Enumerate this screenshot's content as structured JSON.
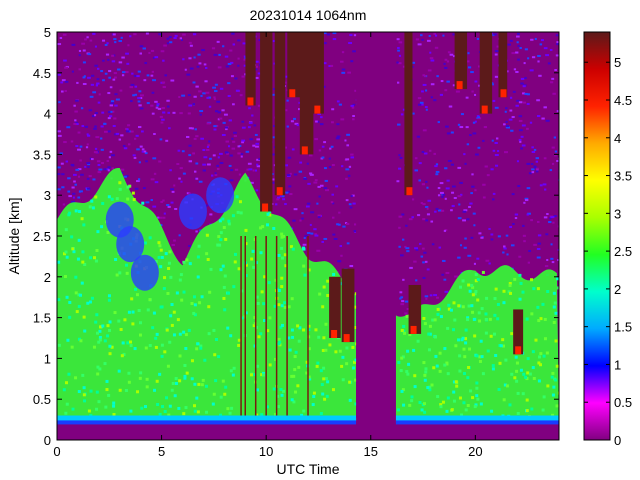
{
  "chart_data": {
    "type": "heatmap",
    "title": "20231014 1064nm",
    "xlabel": "UTC Time",
    "ylabel": "Altitude [km]",
    "xlim": [
      0,
      24
    ],
    "ylim": [
      0,
      5
    ],
    "x_ticks": [
      "0",
      "5",
      "10",
      "15",
      "20"
    ],
    "x_tick_values": [
      0,
      5,
      10,
      15,
      20
    ],
    "y_ticks": [
      "0",
      "0.5",
      "1",
      "1.5",
      "2",
      "2.5",
      "3",
      "3.5",
      "4",
      "4.5",
      "5"
    ],
    "y_tick_values": [
      0,
      0.5,
      1,
      1.5,
      2,
      2.5,
      3,
      3.5,
      4,
      4.5,
      5
    ],
    "colorbar": {
      "range": [
        0,
        5.4
      ],
      "ticks": [
        "0",
        "0.5",
        "1",
        "1.5",
        "2",
        "2.5",
        "3",
        "3.5",
        "4",
        "4.5",
        "5"
      ],
      "tick_values": [
        0,
        0.5,
        1,
        1.5,
        2,
        2.5,
        3,
        3.5,
        4,
        4.5,
        5
      ],
      "colormap": [
        "#800080",
        "#ff00ff",
        "#0000ff",
        "#00aaff",
        "#00ffcc",
        "#22ff22",
        "#aaff00",
        "#ffff00",
        "#ffaa00",
        "#ff2200",
        "#cc0000",
        "#5c1a1a"
      ]
    },
    "data_gap": [
      14.3,
      16.2
    ],
    "boundary_layer_top_km": [
      {
        "t": 0,
        "z": 2.7
      },
      {
        "t": 3,
        "z": 3.3
      },
      {
        "t": 6,
        "z": 2.2
      },
      {
        "t": 9,
        "z": 3.2
      },
      {
        "t": 12,
        "z": 2.3
      },
      {
        "t": 14,
        "z": 1.9
      },
      {
        "t": 17,
        "z": 1.5
      },
      {
        "t": 20,
        "z": 2.1
      },
      {
        "t": 24,
        "z": 2.0
      }
    ],
    "colors": {
      "background": "#800080",
      "noise": "#6a00ff",
      "boundary_layer": "#33ff33",
      "cloud": "#5c1a1a",
      "surface_band": "#1a3cff"
    }
  }
}
